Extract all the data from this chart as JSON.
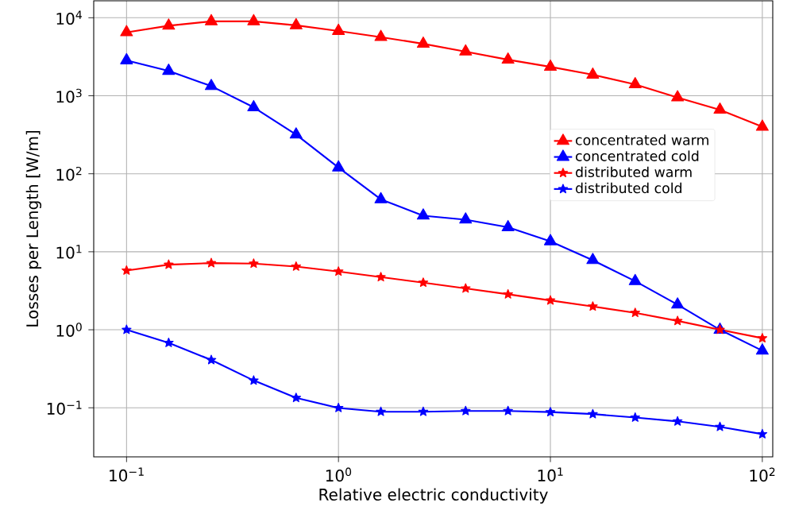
{
  "chart_data": {
    "type": "line",
    "xlabel": "Relative electric conductivity",
    "ylabel": "Losses per Length [W/m]",
    "log": "xy",
    "grid": true,
    "legend": "right",
    "line_style": "solid",
    "xlim": [
      0.07,
      112
    ],
    "ylim": [
      0.0235,
      16500
    ],
    "xticks": [
      {
        "value": 0.1,
        "label": "10$^{−1}$"
      },
      {
        "value": 1,
        "label": "10$^{0}$"
      },
      {
        "value": 10,
        "label": "10$^{1}$"
      },
      {
        "value": 100,
        "label": "10$^{2}$"
      }
    ],
    "yticks": [
      {
        "value": 0.1,
        "label": "10$^{−1}$"
      },
      {
        "value": 1,
        "label": "10$^{0}$"
      },
      {
        "value": 10,
        "label": "10$^{1}$"
      },
      {
        "value": 100,
        "label": "10$^{2}$"
      },
      {
        "value": 1000,
        "label": "10$^{3}$"
      },
      {
        "value": 10000,
        "label": "10$^{4}$"
      }
    ],
    "x": [
      0.1,
      0.158,
      0.251,
      0.398,
      0.631,
      1,
      1.585,
      2.512,
      3.981,
      6.31,
      10,
      15.85,
      25.12,
      39.81,
      63.1,
      100
    ],
    "series": [
      {
        "name": "concentrated warm",
        "color": "#ff0000",
        "marker": "triangle",
        "values": [
          6500,
          7900,
          9000,
          9000,
          8000,
          6760,
          5650,
          4640,
          3680,
          2900,
          2350,
          1860,
          1400,
          950,
          660,
          400
        ]
      },
      {
        "name": "concentrated cold",
        "color": "#0000ff",
        "marker": "triangle",
        "values": [
          2840,
          2080,
          1330,
          711,
          318,
          120,
          47,
          29,
          25.8,
          20.6,
          13.6,
          7.8,
          4.2,
          2.1,
          1.0,
          0.54
        ]
      },
      {
        "name": "distributed warm",
        "color": "#ff0000",
        "marker": "star",
        "values": [
          5.75,
          6.84,
          7.17,
          7.05,
          6.47,
          5.58,
          4.73,
          4.02,
          3.39,
          2.85,
          2.38,
          1.99,
          1.65,
          1.3,
          1.0,
          0.78
        ]
      },
      {
        "name": "distributed cold",
        "color": "#0000ff",
        "marker": "star",
        "values": [
          1.0,
          0.68,
          0.41,
          0.224,
          0.134,
          0.0995,
          0.089,
          0.089,
          0.091,
          0.091,
          0.088,
          0.083,
          0.075,
          0.067,
          0.057,
          0.046
        ]
      }
    ]
  }
}
